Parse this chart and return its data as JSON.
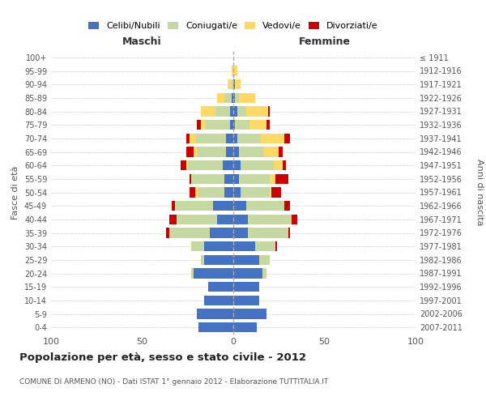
{
  "age_groups": [
    "0-4",
    "5-9",
    "10-14",
    "15-19",
    "20-24",
    "25-29",
    "30-34",
    "35-39",
    "40-44",
    "45-49",
    "50-54",
    "55-59",
    "60-64",
    "65-69",
    "70-74",
    "75-79",
    "80-84",
    "85-89",
    "90-94",
    "95-99",
    "100+"
  ],
  "birth_years": [
    "2007-2011",
    "2002-2006",
    "1997-2001",
    "1992-1996",
    "1987-1991",
    "1982-1986",
    "1977-1981",
    "1972-1976",
    "1967-1971",
    "1962-1966",
    "1957-1961",
    "1952-1956",
    "1947-1951",
    "1942-1946",
    "1937-1941",
    "1932-1936",
    "1927-1931",
    "1922-1926",
    "1917-1921",
    "1912-1916",
    "≤ 1911"
  ],
  "maschi": {
    "celibi": [
      19,
      20,
      16,
      14,
      22,
      16,
      16,
      13,
      9,
      11,
      5,
      5,
      6,
      4,
      4,
      2,
      2,
      1,
      0,
      0,
      0
    ],
    "coniugati": [
      0,
      0,
      0,
      0,
      1,
      2,
      7,
      22,
      22,
      21,
      14,
      18,
      19,
      16,
      17,
      13,
      8,
      4,
      1,
      0,
      0
    ],
    "vedovi": [
      0,
      0,
      0,
      0,
      0,
      0,
      0,
      0,
      0,
      0,
      2,
      0,
      1,
      2,
      3,
      3,
      8,
      4,
      2,
      1,
      0
    ],
    "divorziati": [
      0,
      0,
      0,
      0,
      0,
      0,
      0,
      2,
      4,
      2,
      3,
      1,
      3,
      4,
      2,
      2,
      0,
      0,
      0,
      0,
      0
    ]
  },
  "femmine": {
    "nubili": [
      13,
      18,
      14,
      14,
      16,
      14,
      12,
      8,
      8,
      7,
      4,
      3,
      4,
      3,
      2,
      1,
      2,
      1,
      1,
      0,
      0
    ],
    "coniugate": [
      0,
      0,
      0,
      0,
      2,
      6,
      11,
      22,
      24,
      21,
      16,
      17,
      18,
      14,
      13,
      8,
      5,
      2,
      0,
      0,
      0
    ],
    "vedove": [
      0,
      0,
      0,
      0,
      0,
      0,
      0,
      0,
      0,
      0,
      1,
      3,
      5,
      8,
      13,
      9,
      12,
      9,
      3,
      2,
      0
    ],
    "divorziate": [
      0,
      0,
      0,
      0,
      0,
      0,
      1,
      1,
      3,
      3,
      5,
      7,
      2,
      2,
      3,
      2,
      1,
      0,
      0,
      0,
      0
    ]
  },
  "colors": {
    "celibi": "#4472c4",
    "coniugati": "#c5d9a0",
    "vedovi": "#ffd966",
    "divorziati": "#cc0000"
  },
  "legend_labels": [
    "Celibi/Nubili",
    "Coniugati/e",
    "Vedovi/e",
    "Divorziati/e"
  ],
  "title": "Popolazione per età, sesso e stato civile - 2012",
  "subtitle": "COMUNE DI ARMENO (NO) - Dati ISTAT 1° gennaio 2012 - Elaborazione TUTTITALIA.IT",
  "ylabel_left": "Fasce di età",
  "ylabel_right": "Anni di nascita",
  "xlabel_left": "Maschi",
  "xlabel_right": "Femmine",
  "xlim": 100,
  "background_color": "#ffffff",
  "grid_color": "#cccccc"
}
